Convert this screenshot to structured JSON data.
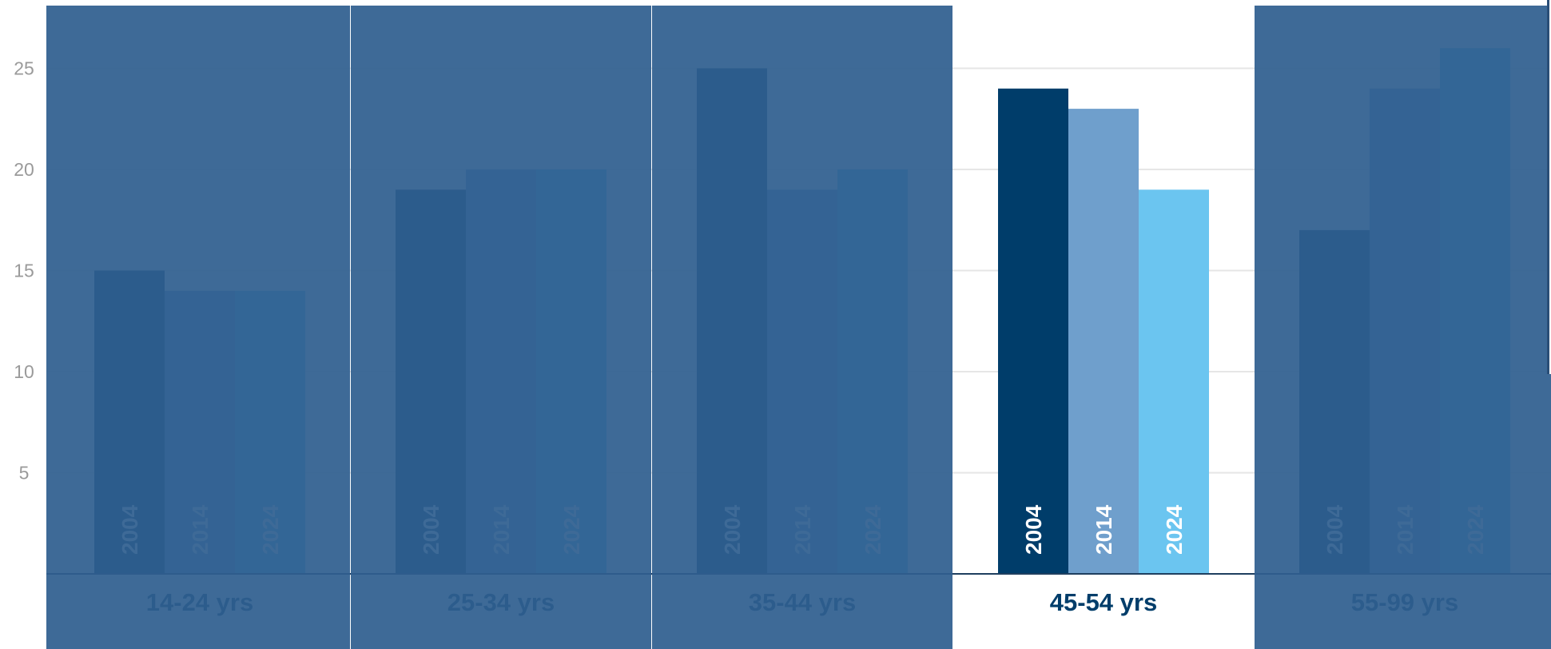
{
  "chart_data": {
    "type": "bar",
    "categories": [
      "14-24 yrs",
      "25-34 yrs",
      "35-44 yrs",
      "45-54 yrs",
      "55-99 yrs"
    ],
    "series": [
      {
        "name": "2004",
        "values": [
          15,
          19,
          25,
          24,
          17
        ],
        "color": "#003d6a"
      },
      {
        "name": "2014",
        "values": [
          14,
          20,
          19,
          23,
          24
        ],
        "color": "#6f9fcc"
      },
      {
        "name": "2024",
        "values": [
          14,
          20,
          20,
          19,
          26
        ],
        "color": "#6bc5f0"
      }
    ],
    "y_ticks": [
      5,
      10,
      15,
      20,
      25
    ],
    "ylim": [
      0,
      28
    ],
    "highlighted_category": "45-54 yrs",
    "dim_overlay_color": "#2f5f8f",
    "gridlines": true,
    "title": "",
    "xlabel": "",
    "ylabel": ""
  }
}
